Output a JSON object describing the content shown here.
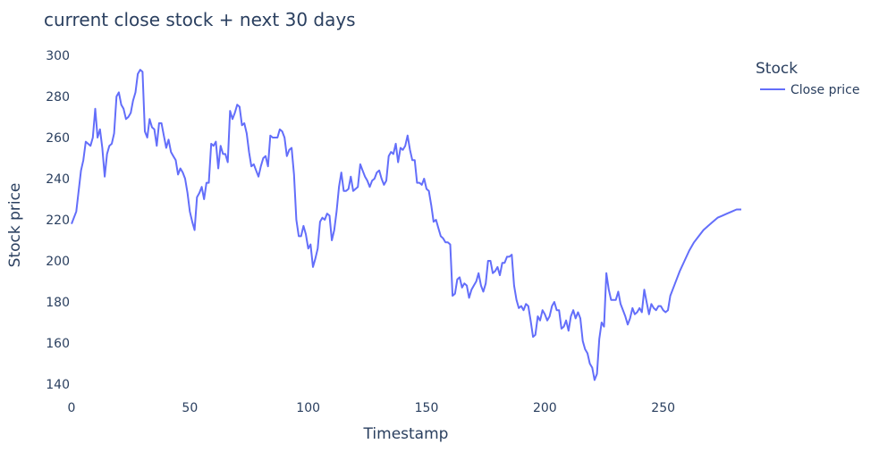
{
  "chart_data": {
    "type": "line",
    "title": "current close stock + next 30 days",
    "xlabel": "Timestamp",
    "ylabel": "Stock price",
    "xlim": [
      0,
      283
    ],
    "ylim": [
      140,
      300
    ],
    "x_ticks": [
      0,
      50,
      100,
      150,
      200,
      250
    ],
    "y_ticks": [
      140,
      160,
      180,
      200,
      220,
      240,
      260,
      280,
      300
    ],
    "grid": false,
    "legend": {
      "title": "Stock",
      "position": "top-right"
    },
    "series": [
      {
        "name": "Close price",
        "color": "#636efa",
        "points": [
          [
            0,
            218
          ],
          [
            2,
            224
          ],
          [
            4,
            244
          ],
          [
            5,
            249
          ],
          [
            6,
            258
          ],
          [
            7,
            257
          ],
          [
            8,
            256
          ],
          [
            9,
            260
          ],
          [
            10,
            274
          ],
          [
            11,
            260
          ],
          [
            12,
            264
          ],
          [
            13,
            255
          ],
          [
            14,
            241
          ],
          [
            15,
            252
          ],
          [
            16,
            256
          ],
          [
            17,
            257
          ],
          [
            18,
            262
          ],
          [
            19,
            280
          ],
          [
            20,
            282
          ],
          [
            21,
            276
          ],
          [
            22,
            274
          ],
          [
            23,
            269
          ],
          [
            24,
            270
          ],
          [
            25,
            272
          ],
          [
            26,
            278
          ],
          [
            27,
            282
          ],
          [
            28,
            291
          ],
          [
            29,
            293
          ],
          [
            30,
            292
          ],
          [
            31,
            263
          ],
          [
            32,
            260
          ],
          [
            33,
            269
          ],
          [
            34,
            265
          ],
          [
            35,
            264
          ],
          [
            36,
            256
          ],
          [
            37,
            267
          ],
          [
            38,
            267
          ],
          [
            39,
            261
          ],
          [
            40,
            255
          ],
          [
            41,
            259
          ],
          [
            42,
            253
          ],
          [
            43,
            251
          ],
          [
            44,
            249
          ],
          [
            45,
            242
          ],
          [
            46,
            245
          ],
          [
            47,
            243
          ],
          [
            48,
            240
          ],
          [
            49,
            233
          ],
          [
            50,
            224
          ],
          [
            51,
            219
          ],
          [
            52,
            215
          ],
          [
            53,
            231
          ],
          [
            54,
            233
          ],
          [
            55,
            236
          ],
          [
            56,
            230
          ],
          [
            57,
            238
          ],
          [
            58,
            238
          ],
          [
            59,
            257
          ],
          [
            60,
            256
          ],
          [
            61,
            258
          ],
          [
            62,
            245
          ],
          [
            63,
            256
          ],
          [
            64,
            252
          ],
          [
            65,
            252
          ],
          [
            66,
            248
          ],
          [
            67,
            273
          ],
          [
            68,
            269
          ],
          [
            69,
            272
          ],
          [
            70,
            276
          ],
          [
            71,
            275
          ],
          [
            72,
            266
          ],
          [
            73,
            267
          ],
          [
            74,
            262
          ],
          [
            75,
            253
          ],
          [
            76,
            246
          ],
          [
            77,
            247
          ],
          [
            78,
            244
          ],
          [
            79,
            241
          ],
          [
            80,
            246
          ],
          [
            81,
            250
          ],
          [
            82,
            251
          ],
          [
            83,
            246
          ],
          [
            84,
            261
          ],
          [
            85,
            260
          ],
          [
            86,
            260
          ],
          [
            87,
            260
          ],
          [
            88,
            264
          ],
          [
            89,
            263
          ],
          [
            90,
            260
          ],
          [
            91,
            251
          ],
          [
            92,
            254
          ],
          [
            93,
            255
          ],
          [
            94,
            242
          ],
          [
            95,
            220
          ],
          [
            96,
            212
          ],
          [
            97,
            212
          ],
          [
            98,
            217
          ],
          [
            99,
            213
          ],
          [
            100,
            206
          ],
          [
            101,
            208
          ],
          [
            102,
            197
          ],
          [
            103,
            201
          ],
          [
            104,
            206
          ],
          [
            105,
            219
          ],
          [
            106,
            221
          ],
          [
            107,
            220
          ],
          [
            108,
            223
          ],
          [
            109,
            222
          ],
          [
            110,
            210
          ],
          [
            111,
            215
          ],
          [
            112,
            224
          ],
          [
            113,
            236
          ],
          [
            114,
            243
          ],
          [
            115,
            234
          ],
          [
            116,
            234
          ],
          [
            117,
            235
          ],
          [
            118,
            241
          ],
          [
            119,
            234
          ],
          [
            120,
            235
          ],
          [
            121,
            236
          ],
          [
            122,
            247
          ],
          [
            123,
            244
          ],
          [
            124,
            241
          ],
          [
            125,
            239
          ],
          [
            126,
            236
          ],
          [
            127,
            239
          ],
          [
            128,
            240
          ],
          [
            129,
            243
          ],
          [
            130,
            244
          ],
          [
            131,
            240
          ],
          [
            132,
            237
          ],
          [
            133,
            239
          ],
          [
            134,
            251
          ],
          [
            135,
            253
          ],
          [
            136,
            252
          ],
          [
            137,
            257
          ],
          [
            138,
            248
          ],
          [
            139,
            255
          ],
          [
            140,
            254
          ],
          [
            141,
            256
          ],
          [
            142,
            261
          ],
          [
            143,
            254
          ],
          [
            144,
            249
          ],
          [
            145,
            249
          ],
          [
            146,
            238
          ],
          [
            147,
            238
          ],
          [
            148,
            237
          ],
          [
            149,
            240
          ],
          [
            150,
            235
          ],
          [
            151,
            234
          ],
          [
            152,
            227
          ],
          [
            153,
            219
          ],
          [
            154,
            220
          ],
          [
            155,
            216
          ],
          [
            156,
            212
          ],
          [
            157,
            211
          ],
          [
            158,
            209
          ],
          [
            159,
            209
          ],
          [
            160,
            208
          ],
          [
            161,
            183
          ],
          [
            162,
            184
          ],
          [
            163,
            191
          ],
          [
            164,
            192
          ],
          [
            165,
            187
          ],
          [
            166,
            189
          ],
          [
            167,
            188
          ],
          [
            168,
            182
          ],
          [
            169,
            186
          ],
          [
            170,
            188
          ],
          [
            171,
            190
          ],
          [
            172,
            194
          ],
          [
            173,
            188
          ],
          [
            174,
            185
          ],
          [
            175,
            189
          ],
          [
            176,
            200
          ],
          [
            177,
            200
          ],
          [
            178,
            194
          ],
          [
            179,
            195
          ],
          [
            180,
            197
          ],
          [
            181,
            193
          ],
          [
            182,
            199
          ],
          [
            183,
            199
          ],
          [
            184,
            202
          ],
          [
            185,
            202
          ],
          [
            186,
            203
          ],
          [
            187,
            188
          ],
          [
            188,
            181
          ],
          [
            189,
            177
          ],
          [
            190,
            178
          ],
          [
            191,
            176
          ],
          [
            192,
            179
          ],
          [
            193,
            178
          ],
          [
            194,
            171
          ],
          [
            195,
            163
          ],
          [
            196,
            164
          ],
          [
            197,
            173
          ],
          [
            198,
            171
          ],
          [
            199,
            176
          ],
          [
            200,
            174
          ],
          [
            201,
            171
          ],
          [
            202,
            173
          ],
          [
            203,
            178
          ],
          [
            204,
            180
          ],
          [
            205,
            176
          ],
          [
            206,
            176
          ],
          [
            207,
            167
          ],
          [
            208,
            168
          ],
          [
            209,
            171
          ],
          [
            210,
            166
          ],
          [
            211,
            173
          ],
          [
            212,
            176
          ],
          [
            213,
            172
          ],
          [
            214,
            175
          ],
          [
            215,
            172
          ],
          [
            216,
            161
          ],
          [
            217,
            157
          ],
          [
            218,
            155
          ],
          [
            219,
            150
          ],
          [
            220,
            148
          ],
          [
            221,
            142
          ],
          [
            222,
            145
          ],
          [
            223,
            162
          ],
          [
            224,
            170
          ],
          [
            225,
            168
          ],
          [
            226,
            194
          ],
          [
            227,
            186
          ],
          [
            228,
            181
          ],
          [
            229,
            181
          ],
          [
            230,
            181
          ],
          [
            231,
            185
          ],
          [
            232,
            179
          ],
          [
            233,
            176
          ],
          [
            234,
            173
          ],
          [
            235,
            169
          ],
          [
            236,
            172
          ],
          [
            237,
            177
          ],
          [
            238,
            174
          ],
          [
            239,
            175
          ],
          [
            240,
            177
          ],
          [
            241,
            175
          ],
          [
            242,
            186
          ],
          [
            243,
            180
          ],
          [
            244,
            174
          ],
          [
            245,
            179
          ],
          [
            246,
            177
          ],
          [
            247,
            176
          ],
          [
            248,
            178
          ],
          [
            249,
            178
          ],
          [
            250,
            176
          ],
          [
            251,
            175
          ],
          [
            252,
            176
          ],
          [
            253,
            183
          ],
          [
            255,
            189
          ],
          [
            257,
            195
          ],
          [
            259,
            200
          ],
          [
            261,
            205
          ],
          [
            263,
            209
          ],
          [
            265,
            212
          ],
          [
            267,
            215
          ],
          [
            269,
            217
          ],
          [
            271,
            219
          ],
          [
            273,
            221
          ],
          [
            275,
            222
          ],
          [
            277,
            223
          ],
          [
            279,
            224
          ],
          [
            281,
            225
          ],
          [
            283,
            225
          ]
        ]
      }
    ]
  }
}
